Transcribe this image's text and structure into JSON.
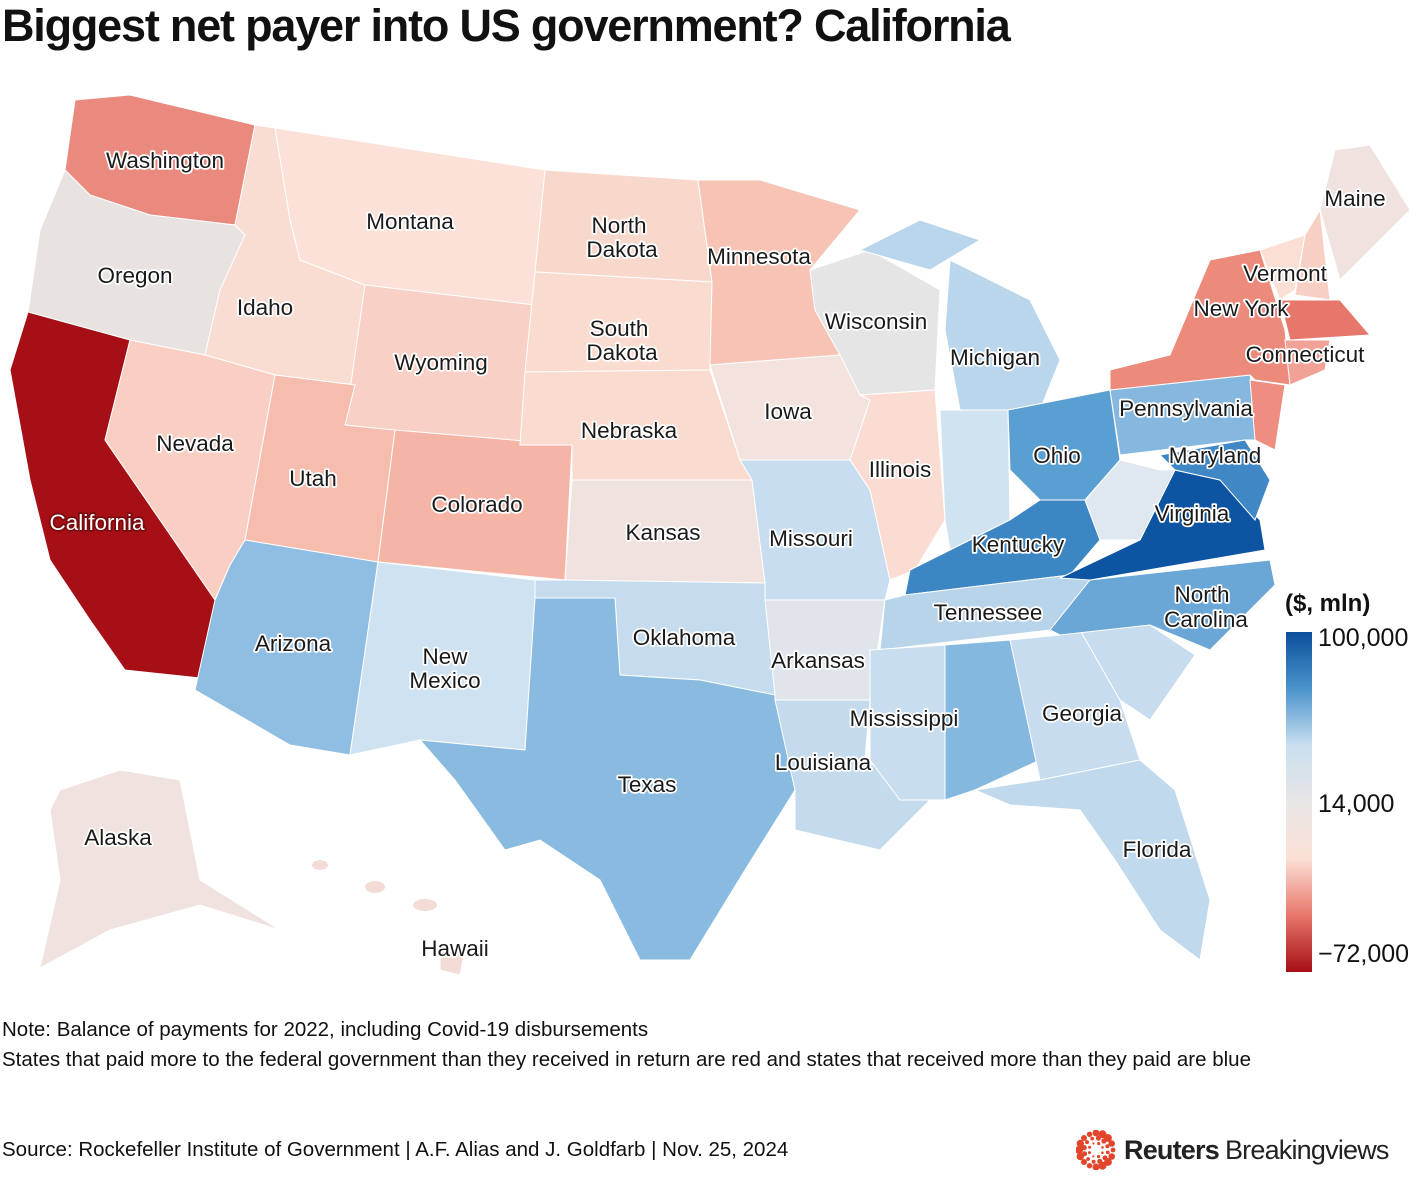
{
  "title": "Biggest net payer into US government? California",
  "legend": {
    "title": "($, mln)",
    "max_label": "100,000",
    "mid_label": "14,000",
    "min_label": "−72,000",
    "colors": [
      "#0b4f9c",
      "#4a93cc",
      "#c9dff0",
      "#e8e6e6",
      "#fbe0d6",
      "#e8776b",
      "#a50f15"
    ]
  },
  "states": [
    {
      "id": "WA",
      "name": "Washington",
      "color": "#ea8a7e"
    },
    {
      "id": "OR",
      "name": "Oregon",
      "color": "#e8e3e1"
    },
    {
      "id": "CA",
      "name": "California",
      "color": "#a50f15"
    },
    {
      "id": "ID",
      "name": "Idaho",
      "color": "#f9dcd2"
    },
    {
      "id": "NV",
      "name": "Nevada",
      "color": "#f9cfc4"
    },
    {
      "id": "MT",
      "name": "Montana",
      "color": "#fbe1d8"
    },
    {
      "id": "WY",
      "name": "Wyoming",
      "color": "#f8d0c5"
    },
    {
      "id": "UT",
      "name": "Utah",
      "color": "#f6bdaf"
    },
    {
      "id": "CO",
      "name": "Colorado",
      "color": "#f5b5a6"
    },
    {
      "id": "AZ",
      "name": "Arizona",
      "color": "#90bee2"
    },
    {
      "id": "NM",
      "name": "New Mexico",
      "color": "#cfe2f1"
    },
    {
      "id": "ND",
      "name": "North Dakota",
      "color": "#f9d8cc"
    },
    {
      "id": "SD",
      "name": "South Dakota",
      "color": "#fadbcf"
    },
    {
      "id": "NE",
      "name": "Nebraska",
      "color": "#fadbd0"
    },
    {
      "id": "KS",
      "name": "Kansas",
      "color": "#f0e2de"
    },
    {
      "id": "OK",
      "name": "Oklahoma",
      "color": "#c5dcee"
    },
    {
      "id": "TX",
      "name": "Texas",
      "color": "#89badf"
    },
    {
      "id": "MN",
      "name": "Minnesota",
      "color": "#f6c3b5"
    },
    {
      "id": "IA",
      "name": "Iowa",
      "color": "#f3e2dd"
    },
    {
      "id": "MO",
      "name": "Missouri",
      "color": "#c8ddef"
    },
    {
      "id": "AR",
      "name": "Arkansas",
      "color": "#dfe5ea"
    },
    {
      "id": "LA",
      "name": "Louisiana",
      "color": "#c4dbee"
    },
    {
      "id": "WI",
      "name": "Wisconsin",
      "color": "#e6e5e6"
    },
    {
      "id": "IL",
      "name": "Illinois",
      "color": "#fbdcd2"
    },
    {
      "id": "MI",
      "name": "Michigan",
      "color": "#b9d6ec"
    },
    {
      "id": "IN",
      "name": "",
      "color": "#d0e3f1"
    },
    {
      "id": "OH",
      "name": "Ohio",
      "color": "#5a9fd1"
    },
    {
      "id": "KY",
      "name": "Kentucky",
      "color": "#3d86c4"
    },
    {
      "id": "TN",
      "name": "Tennessee",
      "color": "#b8d4ea"
    },
    {
      "id": "MS",
      "name": "Mississippi",
      "color": "#c8ddee"
    },
    {
      "id": "AL",
      "name": "",
      "color": "#85b8df"
    },
    {
      "id": "GA",
      "name": "Georgia",
      "color": "#c7dcee"
    },
    {
      "id": "FL",
      "name": "Florida",
      "color": "#c1d9ed"
    },
    {
      "id": "SC",
      "name": "",
      "color": "#c7dcee"
    },
    {
      "id": "NC",
      "name": "North Carolina",
      "color": "#6aa6d6"
    },
    {
      "id": "VA",
      "name": "Virginia",
      "color": "#0d55a2"
    },
    {
      "id": "WV",
      "name": "",
      "color": "#dfe8f0"
    },
    {
      "id": "PA",
      "name": "Pennsylvania",
      "color": "#86b8df"
    },
    {
      "id": "MD",
      "name": "Maryland",
      "color": "#3f87c5"
    },
    {
      "id": "NY",
      "name": "New York",
      "color": "#ec8a7c"
    },
    {
      "id": "NJ",
      "name": "",
      "color": "#ee8d80"
    },
    {
      "id": "VT",
      "name": "Vermont",
      "color": "#fbdfd5"
    },
    {
      "id": "NH",
      "name": "",
      "color": "#f8cfc3"
    },
    {
      "id": "ME",
      "name": "Maine",
      "color": "#f0e2de"
    },
    {
      "id": "MA",
      "name": "",
      "color": "#e8776b"
    },
    {
      "id": "CT",
      "name": "Connecticut",
      "color": "#f2a196"
    },
    {
      "id": "AK",
      "name": "Alaska",
      "color": "#f0e2de"
    },
    {
      "id": "HI",
      "name": "Hawaii",
      "color": "#f3dcd6"
    }
  ],
  "notes": [
    "Note: Balance of payments for 2022, including Covid-19 disbursements",
    "States that paid more to the federal government than they received in return are red and states that received more than they paid are blue"
  ],
  "source": "Source: Rockefeller Institute of Government | A.F. Alias and J. Goldfarb | Nov. 25, 2024",
  "logo": {
    "reuters": "Reuters",
    "breakingviews": "Breakingviews"
  }
}
